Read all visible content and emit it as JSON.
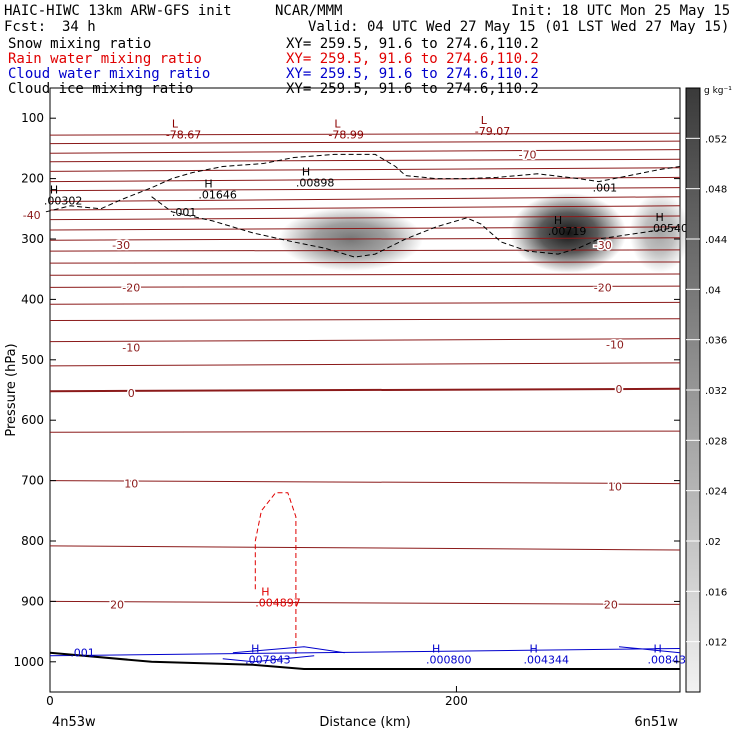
{
  "header": {
    "title": "HAIC-HIWC 13km ARW-GFS init",
    "org": "NCAR/MMM",
    "init": "Init: 18 UTC Mon 25 May 15",
    "fcst_label": "Fcst:",
    "fcst_value": "34 h",
    "valid": "Valid: 04 UTC Wed 27 May 15 (01 LST Wed 27 May 15)",
    "fields": [
      {
        "name": "Snow mixing ratio",
        "xy": "XY= 259.5, 91.6 to 274.6,110.2",
        "color": "#000000"
      },
      {
        "name": "Rain water mixing ratio",
        "xy": "XY= 259.5, 91.6 to 274.6,110.2",
        "color": "#e00000"
      },
      {
        "name": "Cloud water mixing ratio",
        "xy": "XY= 259.5, 91.6 to 274.6,110.2",
        "color": "#0000cc"
      },
      {
        "name": "Cloud ice mixing ratio",
        "xy": "XY= 259.5, 91.6 to 274.6,110.2",
        "color": "#000000"
      }
    ]
  },
  "chart_data": {
    "type": "heatmap",
    "title": "HAIC-HIWC 13km ARW-GFS init",
    "xlabel": "Distance (km)",
    "ylabel": "Pressure (hPa)",
    "x_ticks": [
      0,
      200
    ],
    "y_ticks": [
      100,
      200,
      300,
      400,
      500,
      600,
      700,
      800,
      900,
      1000
    ],
    "xlim": [
      0,
      310
    ],
    "ylim": [
      1050,
      50
    ],
    "x_end_labels": {
      "left": "4n53w",
      "right": "6n51w"
    },
    "colorbar": {
      "unit": "g kg⁻¹",
      "ticks": [
        ".012",
        ".016",
        ".02",
        ".024",
        ".028",
        ".032",
        ".036",
        ".04",
        ".044",
        ".048",
        ".052"
      ],
      "values": [
        0.012,
        0.016,
        0.02,
        0.024,
        0.028,
        0.032,
        0.036,
        0.04,
        0.044,
        0.048,
        0.052
      ],
      "range": [
        0.008,
        0.056
      ]
    },
    "snow_maxima": [
      {
        "x": 148,
        "p": 300,
        "value": 0.03
      },
      {
        "x": 255,
        "p": 290,
        "value": 0.055
      },
      {
        "x": 300,
        "p": 290,
        "value": 0.018
      }
    ],
    "temperature_labels": [
      {
        "x": 235,
        "p": 160,
        "text": "-70"
      },
      {
        "x": -9,
        "p": 260,
        "text": "-40"
      },
      {
        "x": 35,
        "p": 310,
        "text": "-30"
      },
      {
        "x": 272,
        "p": 310,
        "text": "-30"
      },
      {
        "x": 40,
        "p": 380,
        "text": "-20"
      },
      {
        "x": 272,
        "p": 380,
        "text": "-20"
      },
      {
        "x": 40,
        "p": 480,
        "text": "-10"
      },
      {
        "x": 278,
        "p": 475,
        "text": "-10"
      },
      {
        "x": 40,
        "p": 555,
        "text": "0"
      },
      {
        "x": 280,
        "p": 548,
        "text": "0"
      },
      {
        "x": 40,
        "p": 705,
        "text": "10"
      },
      {
        "x": 278,
        "p": 710,
        "text": "10"
      },
      {
        "x": 33,
        "p": 905,
        "text": "20"
      },
      {
        "x": 276,
        "p": 905,
        "text": "20"
      }
    ],
    "isotherms_p_left": [
      128,
      142,
      158,
      172,
      188,
      205,
      220,
      238,
      252,
      268,
      285,
      302,
      320,
      340,
      360,
      380,
      408,
      435,
      470,
      510,
      552,
      620,
      700,
      808,
      900
    ],
    "isotherms_p_right": [
      125,
      138,
      152,
      168,
      182,
      198,
      215,
      230,
      245,
      262,
      280,
      298,
      318,
      338,
      358,
      378,
      405,
      432,
      465,
      505,
      548,
      618,
      705,
      815,
      905
    ],
    "extrema_labels": [
      {
        "x": 57,
        "p": 115,
        "marker": "L",
        "value": "-78.67",
        "color": "#8b0000"
      },
      {
        "x": 137,
        "p": 115,
        "marker": "L",
        "value": "-78.99",
        "color": "#8b0000"
      },
      {
        "x": 209,
        "p": 110,
        "marker": "L",
        "value": "-79.07",
        "color": "#8b0000"
      },
      {
        "x": -3,
        "p": 225,
        "marker": "H",
        "value": ".00302",
        "color": "#000000"
      },
      {
        "x": 73,
        "p": 215,
        "marker": "H",
        "value": ".01646",
        "color": "#000000"
      },
      {
        "x": 121,
        "p": 195,
        "marker": "H",
        "value": ".00898",
        "color": "#000000"
      },
      {
        "x": 245,
        "p": 275,
        "marker": "H",
        "value": ".00719",
        "color": "#000000"
      },
      {
        "x": 295,
        "p": 270,
        "marker": "H",
        "value": ".00540",
        "color": "#000000"
      },
      {
        "x": 101,
        "p": 890,
        "marker": "H",
        "value": ".004897",
        "color": "#e00000"
      },
      {
        "x": 96,
        "p": 985,
        "marker": "H",
        "value": ".007843",
        "color": "#0000cc"
      },
      {
        "x": 185,
        "p": 985,
        "marker": "H",
        "value": ".000800",
        "color": "#0000cc"
      },
      {
        "x": 233,
        "p": 985,
        "marker": "H",
        "value": ".004344",
        "color": "#0000cc"
      },
      {
        "x": 294,
        "p": 985,
        "marker": "H",
        "value": ".00843",
        "color": "#0000cc"
      }
    ],
    "contour_labels": [
      {
        "x": 60,
        "p": 255,
        "text": ".001",
        "color": "#000000"
      },
      {
        "x": 267,
        "p": 215,
        "text": ".001",
        "color": "#000000"
      },
      {
        "x": 10,
        "p": 985,
        "text": ".001",
        "color": "#0000cc"
      }
    ],
    "ice_contour": [
      [
        -2,
        255
      ],
      [
        10,
        245
      ],
      [
        25,
        250
      ],
      [
        35,
        235
      ],
      [
        50,
        215
      ],
      [
        60,
        200
      ],
      [
        70,
        190
      ],
      [
        85,
        180
      ],
      [
        105,
        175
      ],
      [
        120,
        165
      ],
      [
        140,
        160
      ],
      [
        160,
        160
      ],
      [
        170,
        180
      ],
      [
        175,
        195
      ],
      [
        190,
        200
      ],
      [
        205,
        200
      ],
      [
        220,
        198
      ],
      [
        240,
        192
      ],
      [
        260,
        200
      ],
      [
        270,
        205
      ],
      [
        285,
        195
      ],
      [
        300,
        185
      ],
      [
        310,
        180
      ]
    ],
    "ice_contour_lower": [
      [
        50,
        230
      ],
      [
        60,
        255
      ],
      [
        80,
        270
      ],
      [
        100,
        290
      ],
      [
        120,
        305
      ],
      [
        135,
        315
      ],
      [
        150,
        330
      ],
      [
        160,
        325
      ],
      [
        175,
        300
      ],
      [
        190,
        280
      ],
      [
        205,
        265
      ],
      [
        212,
        275
      ],
      [
        222,
        305
      ],
      [
        235,
        320
      ],
      [
        250,
        325
      ],
      [
        260,
        315
      ],
      [
        270,
        300
      ],
      [
        290,
        290
      ],
      [
        310,
        280
      ]
    ],
    "rain_contour": [
      [
        101,
        880
      ],
      [
        101,
        800
      ],
      [
        104,
        750
      ],
      [
        111,
        720
      ],
      [
        117,
        720
      ],
      [
        121,
        760
      ],
      [
        121,
        860
      ],
      [
        121,
        990
      ]
    ],
    "terrain": [
      [
        0,
        985
      ],
      [
        50,
        1000
      ],
      [
        100,
        1005
      ],
      [
        125,
        1012
      ],
      [
        180,
        1012
      ],
      [
        310,
        1012
      ]
    ]
  }
}
